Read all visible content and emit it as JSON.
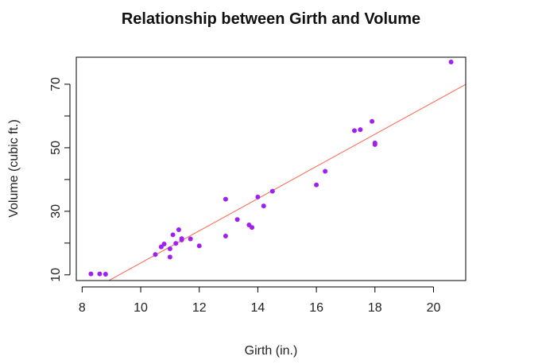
{
  "chart_data": {
    "type": "scatter",
    "title": "Relationship between Girth and Volume",
    "xlabel": "Girth (in.)",
    "ylabel": "Volume (cubic ft.)",
    "xlim": [
      7.8,
      21.1
    ],
    "ylim": [
      8.2,
      78.5
    ],
    "x_ticks": [
      8,
      10,
      12,
      14,
      16,
      18,
      20
    ],
    "y_ticks": [
      10,
      30,
      50,
      70
    ],
    "y_minor_ticks": [
      20,
      40,
      60
    ],
    "grid": false,
    "colors": {
      "points": "#a020f0",
      "fit_line": "#ff6347",
      "axes": "#000000"
    },
    "series": [
      {
        "x": [
          8.3,
          8.6,
          8.8,
          10.5,
          10.7,
          10.8,
          11.0,
          11.0,
          11.1,
          11.2,
          11.3,
          11.4,
          11.4,
          11.7,
          12.0,
          12.9,
          12.9,
          13.3,
          13.7,
          13.8,
          14.0,
          14.2,
          14.5,
          16.0,
          16.3,
          17.3,
          17.5,
          17.9,
          18.0,
          18.0,
          20.6
        ],
        "y": [
          10.3,
          10.3,
          10.2,
          16.4,
          18.8,
          19.7,
          15.6,
          18.2,
          22.6,
          19.9,
          24.2,
          21.0,
          21.4,
          21.3,
          19.1,
          22.2,
          33.8,
          27.4,
          25.7,
          24.9,
          34.5,
          31.7,
          36.3,
          38.3,
          42.6,
          55.4,
          55.7,
          58.3,
          51.5,
          51.0,
          77.0
        ]
      }
    ],
    "fit_line": {
      "intercept": -36.94,
      "slope": 5.066
    }
  }
}
